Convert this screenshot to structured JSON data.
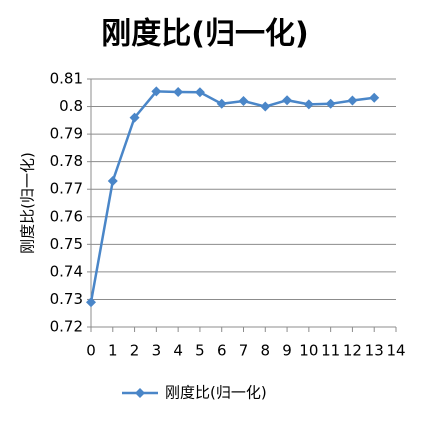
{
  "chart_data": {
    "type": "line",
    "title": "刚度比(归一化)",
    "ylabel": "刚度比(归一化)",
    "x": [
      0,
      1,
      2,
      3,
      4,
      5,
      6,
      7,
      8,
      9,
      10,
      11,
      12,
      13
    ],
    "series": [
      {
        "name": "刚度比(归一化)",
        "color": "#4a86c8",
        "values": [
          0.729,
          0.773,
          0.796,
          0.8055,
          0.8053,
          0.8052,
          0.801,
          0.802,
          0.8,
          0.8023,
          0.8008,
          0.801,
          0.8022,
          0.8032
        ]
      }
    ],
    "xlim": [
      0,
      14
    ],
    "xticks": [
      0,
      1,
      2,
      3,
      4,
      5,
      6,
      7,
      8,
      9,
      10,
      11,
      12,
      13,
      14
    ],
    "ylim": [
      0.72,
      0.81
    ],
    "yticks": [
      0.72,
      0.73,
      0.74,
      0.75,
      0.76,
      0.77,
      0.78,
      0.79,
      0.8,
      0.81
    ],
    "grid": true,
    "legend": "bottom"
  }
}
